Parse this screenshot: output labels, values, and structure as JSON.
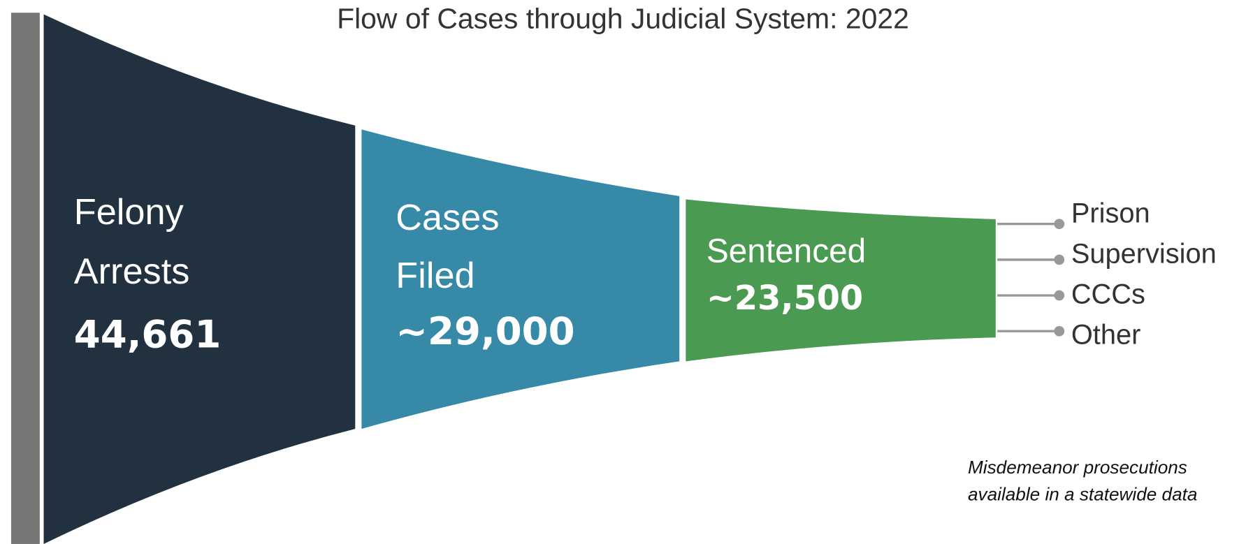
{
  "title": "Flow of Cases through Judicial System: 2022",
  "stages": [
    {
      "label": [
        "Felony",
        "Arrests"
      ],
      "value": "44,661"
    },
    {
      "label": [
        "Cases",
        "Filed"
      ],
      "value": "~29,000"
    },
    {
      "label": [
        "Sentenced"
      ],
      "value": "~23,500"
    }
  ],
  "outcomes": [
    "Prison",
    "Supervision",
    "CCCs",
    "Other"
  ],
  "note": [
    "Misdemeanor prosecutions",
    "available in a statewide data"
  ]
}
